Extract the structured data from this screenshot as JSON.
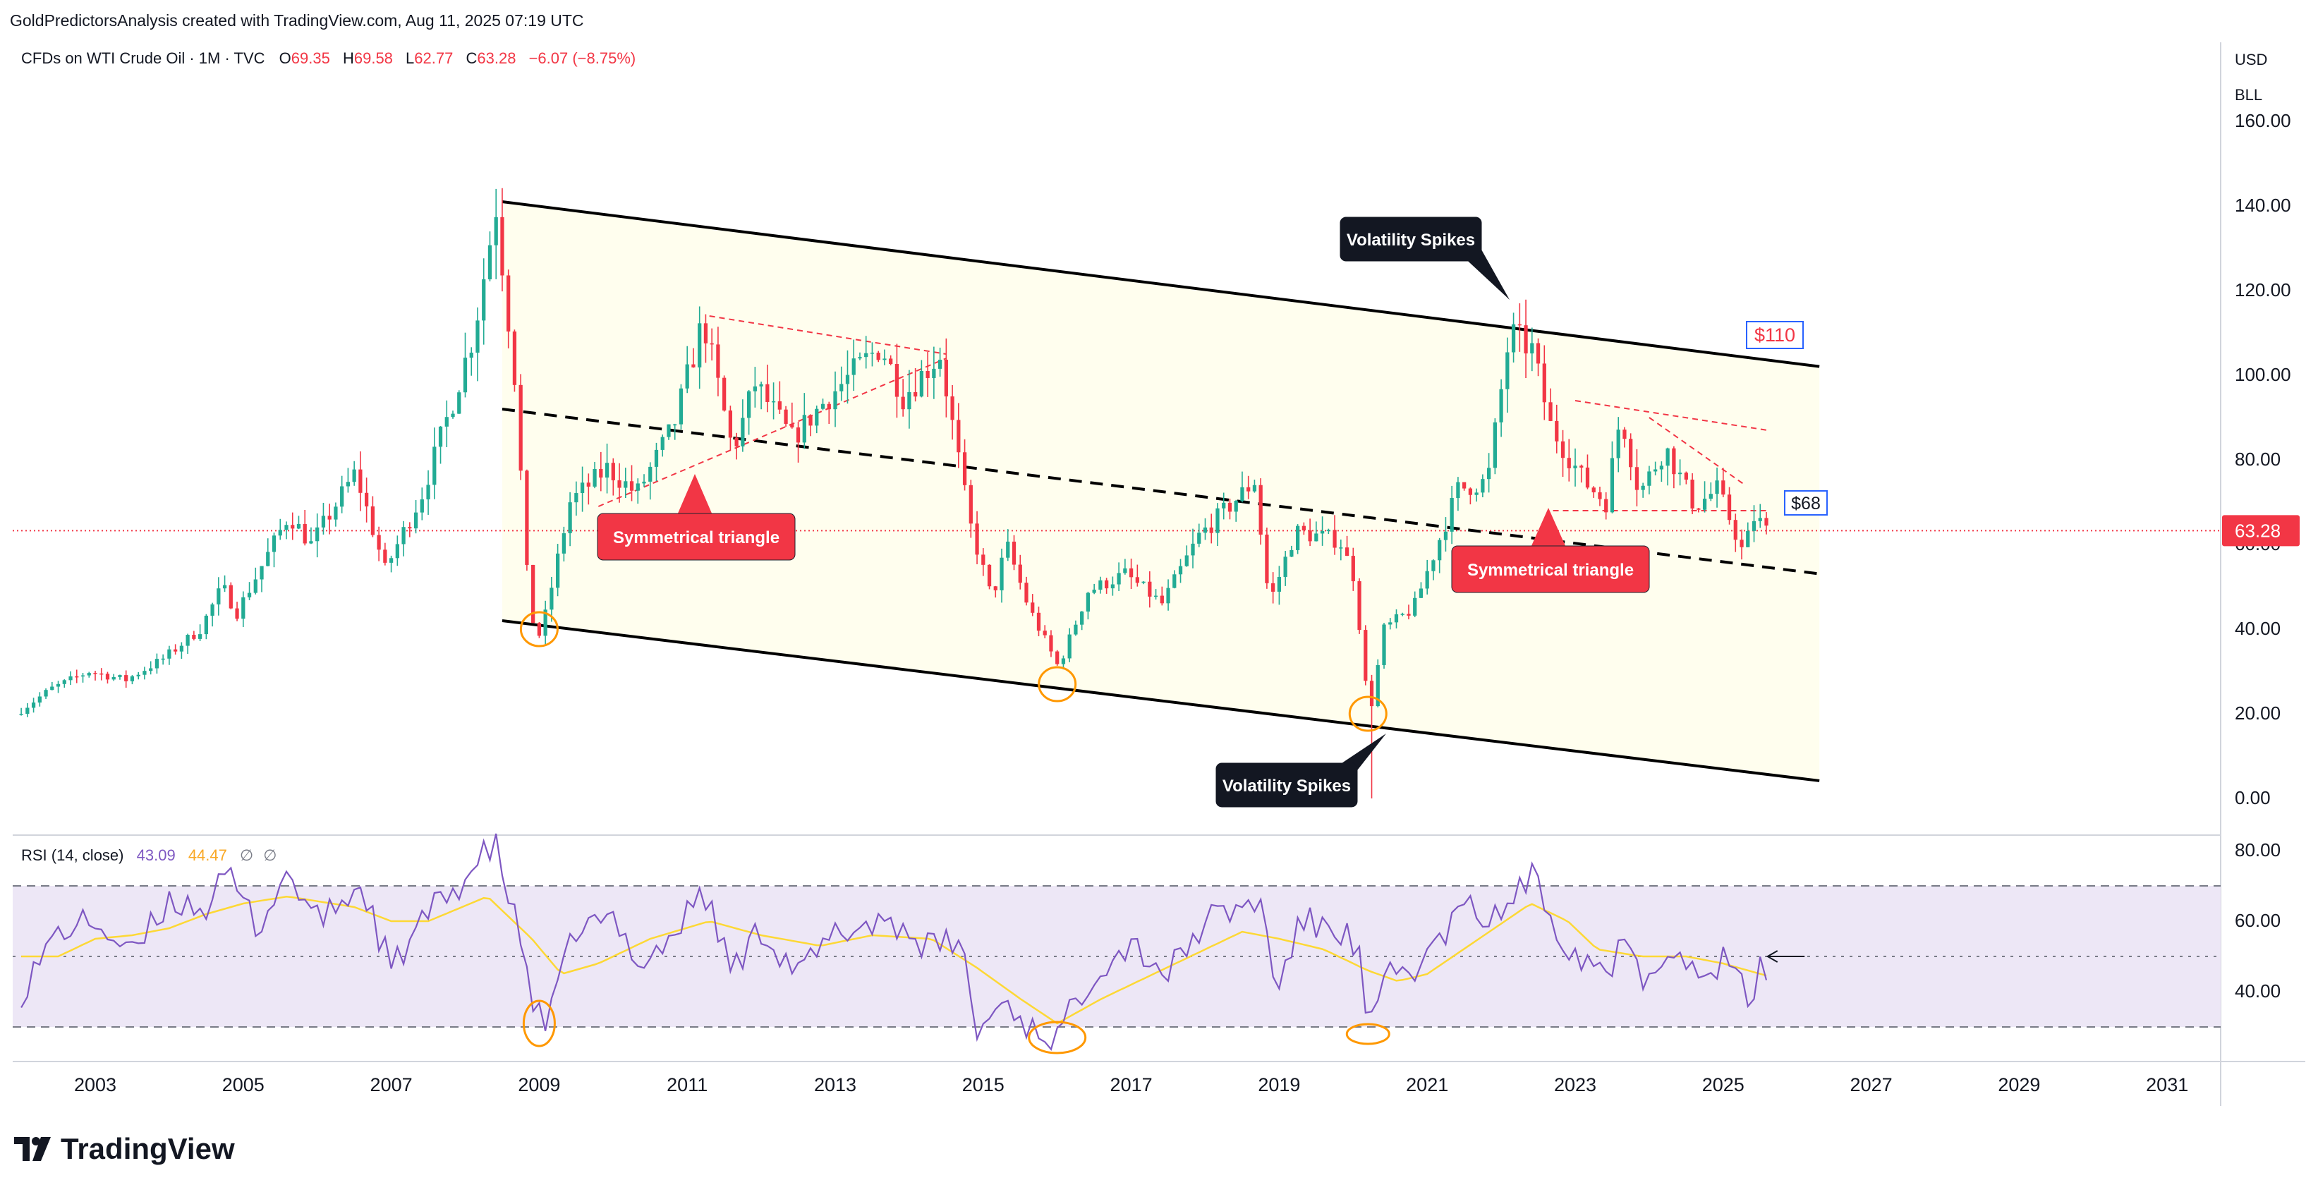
{
  "header": {
    "credit": "GoldPredictorsAnalysis created with TradingView.com, Aug 11, 2025 07:19 UTC",
    "symbol": "CFDs on WTI Crude Oil · 1M · TVC",
    "ohlc": {
      "o_label": "O",
      "o": "69.35",
      "h_label": "H",
      "h": "69.58",
      "l_label": "L",
      "l": "62.77",
      "c_label": "C",
      "c": "63.28",
      "change": "−6.07 (−8.75%)"
    }
  },
  "price_scale": {
    "currency": "USD",
    "unit": "BLL",
    "last_price_label": "63.28"
  },
  "rsi_header": {
    "name": "RSI (14, close)",
    "rsi_value": "43.09",
    "ma_value": "44.47",
    "extra1": "∅",
    "extra2": "∅"
  },
  "brand": {
    "name": "TradingView"
  },
  "colors": {
    "up": "#22ab94",
    "down": "#f23645",
    "rsi_line": "#7e57c2",
    "rsi_ma": "#fdd835",
    "rsi_band": "#ede7f6",
    "callout_red": "#f23645",
    "callout_dark": "#131722",
    "circle": "#ff9800"
  },
  "annotations": {
    "sym_triangle_1": "Symmetrical triangle",
    "sym_triangle_2": "Symmetrical triangle",
    "vol_spike_top": "Volatility Spikes",
    "vol_spike_bottom": "Volatility Spikes",
    "target_110": "$110",
    "level_68": "$68"
  },
  "chart_data": [
    {
      "type": "candlestick",
      "title": "CFDs on WTI Crude Oil · 1M · TVC",
      "x_ticks": [
        "2003",
        "2005",
        "2007",
        "2009",
        "2011",
        "2013",
        "2015",
        "2017",
        "2019",
        "2021",
        "2023",
        "2025",
        "2027",
        "2029",
        "2031"
      ],
      "y_ticks": [
        "0.00",
        "20.00",
        "40.00",
        "60.00",
        "80.00",
        "100.00",
        "120.00",
        "140.00",
        "160.00"
      ],
      "ylim": [
        -8,
        168
      ],
      "xlim": [
        2002.0,
        2031.7
      ],
      "last_price": 63.28,
      "monthly_close_anchors": [
        [
          2002.0,
          20
        ],
        [
          2002.5,
          26
        ],
        [
          2003.0,
          30
        ],
        [
          2003.5,
          28
        ],
        [
          2004.0,
          33
        ],
        [
          2004.5,
          40
        ],
        [
          2004.8,
          50
        ],
        [
          2005.0,
          44
        ],
        [
          2005.7,
          67
        ],
        [
          2006.0,
          60
        ],
        [
          2006.6,
          77
        ],
        [
          2007.0,
          54
        ],
        [
          2007.5,
          72
        ],
        [
          2007.9,
          93
        ],
        [
          2008.2,
          110
        ],
        [
          2008.5,
          140
        ],
        [
          2008.75,
          100
        ],
        [
          2008.95,
          44
        ],
        [
          2009.1,
          38
        ],
        [
          2009.5,
          70
        ],
        [
          2010.0,
          78
        ],
        [
          2010.4,
          72
        ],
        [
          2010.9,
          88
        ],
        [
          2011.3,
          113
        ],
        [
          2011.7,
          82
        ],
        [
          2012.0,
          98
        ],
        [
          2012.5,
          85
        ],
        [
          2013.0,
          95
        ],
        [
          2013.7,
          107
        ],
        [
          2014.0,
          95
        ],
        [
          2014.5,
          105
        ],
        [
          2014.9,
          65
        ],
        [
          2015.2,
          47
        ],
        [
          2015.4,
          60
        ],
        [
          2015.7,
          45
        ],
        [
          2016.1,
          31
        ],
        [
          2016.5,
          49
        ],
        [
          2017.0,
          53
        ],
        [
          2017.5,
          46
        ],
        [
          2018.0,
          62
        ],
        [
          2018.75,
          75
        ],
        [
          2018.95,
          46
        ],
        [
          2019.3,
          63
        ],
        [
          2019.9,
          61
        ],
        [
          2020.1,
          52
        ],
        [
          2020.3,
          19
        ],
        [
          2020.5,
          40
        ],
        [
          2020.9,
          45
        ],
        [
          2021.5,
          73
        ],
        [
          2021.9,
          75
        ],
        [
          2022.2,
          110
        ],
        [
          2022.5,
          106
        ],
        [
          2022.75,
          88
        ],
        [
          2023.2,
          75
        ],
        [
          2023.5,
          70
        ],
        [
          2023.7,
          91
        ],
        [
          2023.95,
          72
        ],
        [
          2024.3,
          83
        ],
        [
          2024.7,
          69
        ],
        [
          2025.0,
          73
        ],
        [
          2025.2,
          65
        ],
        [
          2025.35,
          58
        ],
        [
          2025.55,
          69
        ],
        [
          2025.6,
          63.28
        ]
      ],
      "trendlines": [
        {
          "name": "channel-top",
          "points": [
            [
              2008.5,
              141
            ],
            [
              2024.5,
              106
            ]
          ]
        },
        {
          "name": "channel-mid",
          "points": [
            [
              2008.5,
              92
            ],
            [
              2024.5,
              57
            ]
          ]
        },
        {
          "name": "channel-bottom",
          "points": [
            [
              2008.5,
              42
            ],
            [
              2024.5,
              8
            ]
          ]
        }
      ],
      "triangles": [
        {
          "upper": [
            [
              2011.3,
              114
            ],
            [
              2014.5,
              105
            ]
          ],
          "lower": [
            [
              2009.8,
              69
            ],
            [
              2014.5,
              104
            ]
          ]
        },
        {
          "upper": [
            [
              2023.0,
              94
            ],
            [
              2025.6,
              87
            ]
          ],
          "lower": [
            [
              2022.7,
              68
            ],
            [
              2025.6,
              68
            ]
          ],
          "inner_upper": [
            [
              2024.0,
              90
            ],
            [
              2025.3,
              74
            ]
          ]
        }
      ],
      "reversal_circles": [
        [
          2009.0,
          40
        ],
        [
          2016.0,
          27
        ],
        [
          2020.2,
          20
        ]
      ]
    },
    {
      "type": "line",
      "title": "RSI (14, close)",
      "y_ticks": [
        "40.00",
        "60.00",
        "80.00"
      ],
      "ylim": [
        24,
        84
      ],
      "bands": [
        30,
        50,
        70
      ],
      "series": [
        {
          "name": "RSI",
          "values_anchor": [
            [
              2002.0,
              40
            ],
            [
              2002.5,
              57
            ],
            [
              2003.0,
              60
            ],
            [
              2003.5,
              50
            ],
            [
              2004.0,
              66
            ],
            [
              2004.5,
              64
            ],
            [
              2004.8,
              73
            ],
            [
              2005.2,
              58
            ],
            [
              2005.6,
              74
            ],
            [
              2006.0,
              60
            ],
            [
              2006.6,
              70
            ],
            [
              2007.0,
              46
            ],
            [
              2007.5,
              62
            ],
            [
              2007.9,
              70
            ],
            [
              2008.4,
              82
            ],
            [
              2008.8,
              50
            ],
            [
              2008.95,
              34
            ],
            [
              2009.1,
              30
            ],
            [
              2009.5,
              58
            ],
            [
              2010.0,
              60
            ],
            [
              2010.4,
              48
            ],
            [
              2010.9,
              58
            ],
            [
              2011.2,
              70
            ],
            [
              2011.6,
              46
            ],
            [
              2012.0,
              58
            ],
            [
              2012.5,
              45
            ],
            [
              2013.0,
              56
            ],
            [
              2013.7,
              61
            ],
            [
              2014.3,
              52
            ],
            [
              2014.7,
              55
            ],
            [
              2014.9,
              28
            ],
            [
              2015.3,
              38
            ],
            [
              2015.6,
              30
            ],
            [
              2016.0,
              27
            ],
            [
              2016.5,
              46
            ],
            [
              2017.0,
              54
            ],
            [
              2017.5,
              45
            ],
            [
              2018.0,
              60
            ],
            [
              2018.75,
              66
            ],
            [
              2018.95,
              40
            ],
            [
              2019.3,
              60
            ],
            [
              2019.9,
              57
            ],
            [
              2020.1,
              48
            ],
            [
              2020.2,
              28
            ],
            [
              2020.5,
              45
            ],
            [
              2020.9,
              47
            ],
            [
              2021.5,
              64
            ],
            [
              2021.9,
              60
            ],
            [
              2022.4,
              73
            ],
            [
              2022.9,
              53
            ],
            [
              2023.2,
              49
            ],
            [
              2023.5,
              46
            ],
            [
              2023.7,
              60
            ],
            [
              2023.95,
              42
            ],
            [
              2024.3,
              55
            ],
            [
              2024.7,
              42
            ],
            [
              2025.0,
              49
            ],
            [
              2025.35,
              38
            ],
            [
              2025.55,
              48
            ],
            [
              2025.6,
              43.09
            ]
          ]
        },
        {
          "name": "RSI-based MA",
          "values_anchor": [
            [
              2002.0,
              50
            ],
            [
              2002.5,
              50
            ],
            [
              2003.0,
              55
            ],
            [
              2003.5,
              56
            ],
            [
              2004.0,
              58
            ],
            [
              2004.5,
              62
            ],
            [
              2005.0,
              65
            ],
            [
              2005.6,
              67
            ],
            [
              2006.5,
              64
            ],
            [
              2007.0,
              60
            ],
            [
              2007.5,
              60
            ],
            [
              2008.3,
              67
            ],
            [
              2008.9,
              55
            ],
            [
              2009.3,
              45
            ],
            [
              2009.8,
              48
            ],
            [
              2010.5,
              55
            ],
            [
              2011.3,
              60
            ],
            [
              2012.0,
              56
            ],
            [
              2012.8,
              53
            ],
            [
              2013.5,
              56
            ],
            [
              2014.3,
              55
            ],
            [
              2014.9,
              47
            ],
            [
              2015.5,
              38
            ],
            [
              2016.0,
              31
            ],
            [
              2016.6,
              38
            ],
            [
              2017.2,
              44
            ],
            [
              2017.8,
              50
            ],
            [
              2018.5,
              57
            ],
            [
              2019.0,
              55
            ],
            [
              2019.6,
              52
            ],
            [
              2020.2,
              46
            ],
            [
              2020.6,
              43
            ],
            [
              2021.0,
              45
            ],
            [
              2021.7,
              55
            ],
            [
              2022.4,
              65
            ],
            [
              2022.9,
              60
            ],
            [
              2023.3,
              52
            ],
            [
              2023.9,
              50
            ],
            [
              2024.5,
              50
            ],
            [
              2025.0,
              48
            ],
            [
              2025.6,
              44.47
            ]
          ]
        }
      ]
    }
  ]
}
